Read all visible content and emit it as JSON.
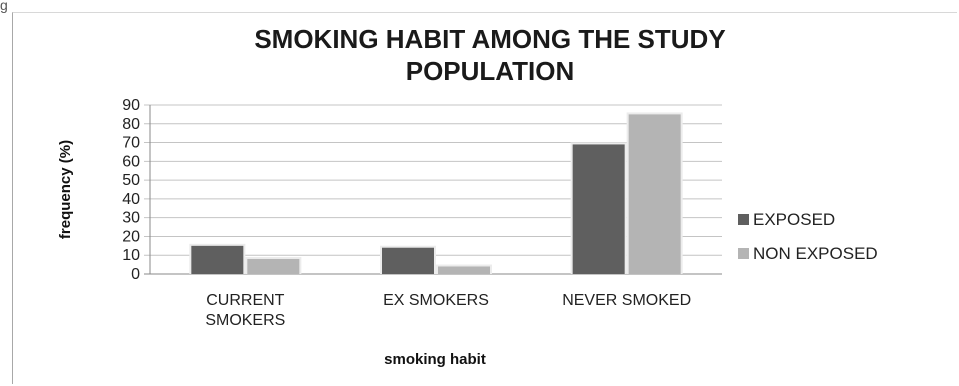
{
  "top_label": "g",
  "chart_data": {
    "type": "bar",
    "title_lines": [
      "SMOKING HABIT AMONG THE STUDY",
      "POPULATION"
    ],
    "categories": [
      [
        "CURRENT",
        "SMOKERS"
      ],
      [
        "EX SMOKERS"
      ],
      [
        "NEVER SMOKED"
      ]
    ],
    "series": [
      {
        "name": "EXPOSED",
        "values": [
          15,
          14,
          69
        ],
        "color": "#5f5f5f"
      },
      {
        "name": "NON EXPOSED",
        "values": [
          8,
          4,
          85
        ],
        "color": "#b4b4b4"
      }
    ],
    "xlabel": "smoking habit",
    "ylabel": "frequency (%)",
    "ylim": [
      0,
      90
    ],
    "yticks": [
      0,
      10,
      20,
      30,
      40,
      50,
      60,
      70,
      80,
      90
    ],
    "grid": true,
    "legend_position": "right"
  }
}
